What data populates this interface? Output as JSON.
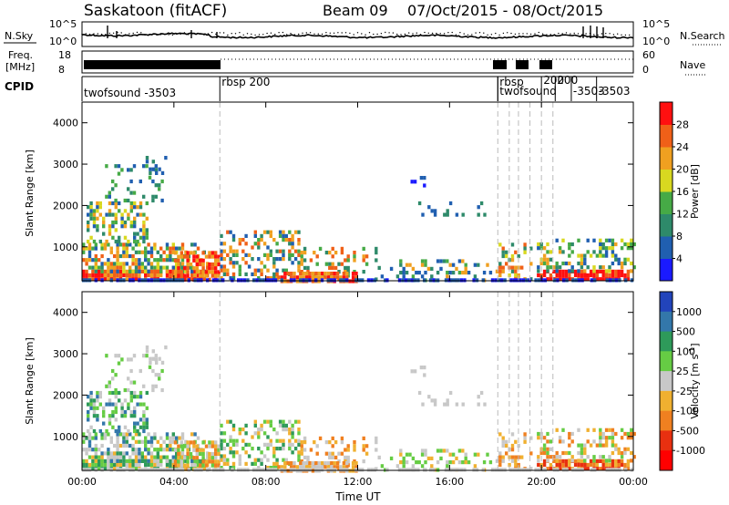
{
  "header": {
    "station": "Saskatoon (fitACF)",
    "beam": "Beam 09",
    "date_range": "07/Oct/2015 - 08/Oct/2015"
  },
  "noise_panel": {
    "left_label": "N.Sky",
    "right_label": "N.Search",
    "left_ticks": [
      "10^5",
      "10^0"
    ],
    "right_ticks": [
      "10^5",
      "10^0"
    ]
  },
  "freq_panel": {
    "left_label_1": "Freq.",
    "left_label_2": "[MHz]",
    "right_label": "Nave",
    "left_ticks": [
      "18",
      "8"
    ],
    "right_ticks": [
      "60",
      "0"
    ]
  },
  "cpid": {
    "label": "CPID",
    "segments": [
      {
        "text": "twofsound -3503",
        "start_hour": 0
      },
      {
        "text": "rbsp 200",
        "start_hour": 6
      },
      {
        "text": "rbsp",
        "start_hour": 18.1
      },
      {
        "text": "twofsound",
        "start_hour": 18.1
      },
      {
        "text": "200",
        "start_hour": 20.0
      },
      {
        "text": "200",
        "start_hour": 20.6
      },
      {
        "text": "-3503",
        "start_hour": 21.3
      },
      {
        "text": "-3503",
        "start_hour": 22.4
      }
    ]
  },
  "colors": {
    "power_scale": [
      "#1a1aff",
      "#205fb0",
      "#2e8a6a",
      "#46aa46",
      "#d8d820",
      "#f0a020",
      "#f06018",
      "#ff1010"
    ],
    "velocity_scale": [
      "#2244bb",
      "#3377aa",
      "#2e9a5a",
      "#66cc44",
      "#c8c8c8",
      "#f0b030",
      "#f08020",
      "#e83010",
      "#ff0000"
    ]
  },
  "chart_data": [
    {
      "type": "heatmap",
      "name": "power",
      "ylabel": "Slant Range [km]",
      "colorbar_label": "Power [dB]",
      "colorbar_ticks": [
        "4",
        "8",
        "12",
        "16",
        "20",
        "24",
        "28"
      ],
      "ylim": [
        180,
        4500
      ],
      "yticks": [
        1000,
        2000,
        3000,
        4000
      ],
      "xlim": [
        0,
        24
      ],
      "xticks": [
        "00:00",
        "04:00",
        "08:00",
        "12:00",
        "16:00",
        "20:00",
        "00:00"
      ],
      "cpid_boundaries_hours": [
        6,
        18.1,
        18.6,
        19.0,
        19.5,
        20.0,
        20.5
      ],
      "grid": false
    },
    {
      "type": "heatmap",
      "name": "velocity",
      "ylabel": "Slant Range [km]",
      "colorbar_label": "Velocity [m s-1]",
      "colorbar_ticks": [
        "1000",
        "500",
        "100",
        "25",
        "-25",
        "-100",
        "-500",
        "-1000"
      ],
      "ylim": [
        180,
        4500
      ],
      "yticks": [
        1000,
        2000,
        3000,
        4000
      ],
      "xlim": [
        0,
        24
      ],
      "xticks": [
        "00:00",
        "04:00",
        "08:00",
        "12:00",
        "16:00",
        "20:00",
        "00:00"
      ],
      "xlabel": "Time UT",
      "grid": false
    }
  ]
}
